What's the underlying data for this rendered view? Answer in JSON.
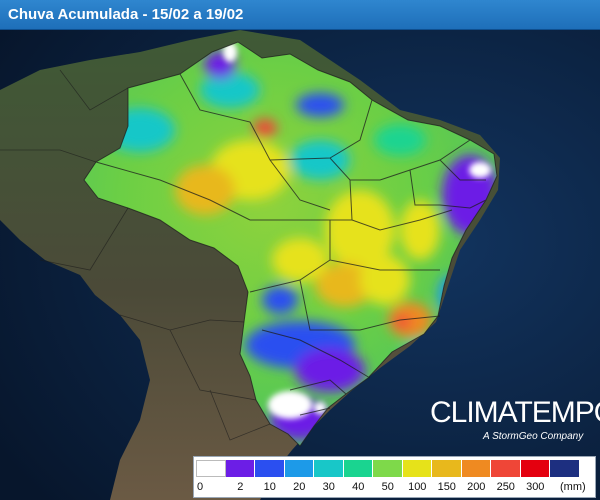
{
  "header": {
    "title": "Chuva Acumulada - 15/02 a 19/02"
  },
  "brand": {
    "name": "CLIMATEMPO",
    "tagline": "A StormGeo Company"
  },
  "legend": {
    "unit": "(mm)",
    "ticks": [
      "0",
      "2",
      "10",
      "20",
      "30",
      "40",
      "50",
      "100",
      "150",
      "200",
      "250",
      "300"
    ],
    "colors": [
      "#ffffff",
      "#6c1ee6",
      "#2b4ff0",
      "#1d9ae8",
      "#18c7c8",
      "#1ad490",
      "#7ed94a",
      "#e6e21a",
      "#e8b81c",
      "#ef8a21",
      "#ef4637",
      "#e4000f",
      "#1d2f80"
    ]
  },
  "map": {
    "subject": "Brazil accumulated rainfall",
    "colors": {
      "ocean": "#0f2a52",
      "land": "#3c4a35",
      "border": "#1d1d1d"
    }
  }
}
